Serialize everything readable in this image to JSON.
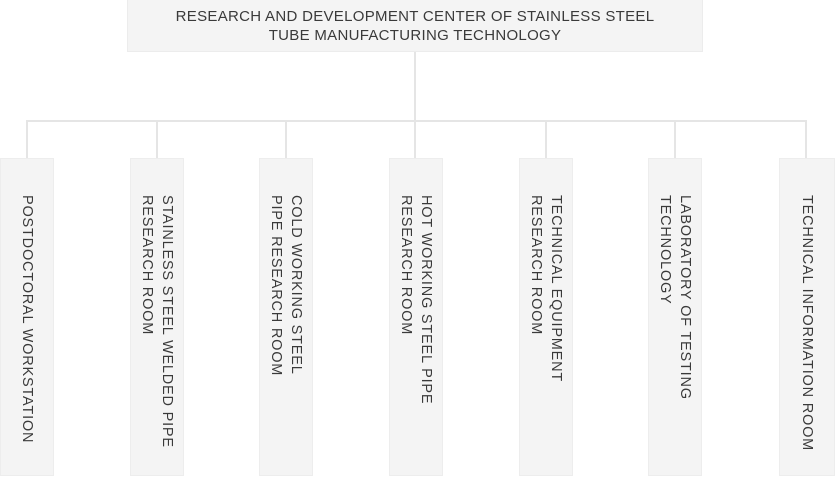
{
  "org_chart": {
    "root": {
      "title": "RESEARCH AND DEVELOPMENT CENTER OF STAINLESS STEEL TUBE MANUFACTURING TECHNOLOGY",
      "title_lines": [
        "RESEARCH AND DEVELOPMENT CENTER OF STAINLESS STEEL",
        "TUBE MANUFACTURING TECHNOLOGY"
      ]
    },
    "children": [
      {
        "label": "POSTDOCTORAL WORKSTATION",
        "lines": [
          "POSTDOCTORAL WORKSTATION"
        ]
      },
      {
        "label": "STAINLESS STEEL WELDED PIPE RESEARCH ROOM",
        "lines": [
          "STAINLESS STEEL WELDED PIPE",
          "RESEARCH ROOM"
        ]
      },
      {
        "label": "COLD WORKING STEEL PIPE RESEARCH ROOM",
        "lines": [
          "COLD WORKING STEEL",
          "PIPE RESEARCH ROOM"
        ]
      },
      {
        "label": "HOT WORKING STEEL PIPE RESEARCH ROOM",
        "lines": [
          "HOT WORKING STEEL PIPE",
          "RESEARCH ROOM"
        ]
      },
      {
        "label": "TECHNICAL EQUIPMENT RESEARCH ROOM",
        "lines": [
          "TECHNICAL EQUIPMENT",
          "RESEARCH ROOM"
        ]
      },
      {
        "label": "LABORATORY OF TESTING TECHNOLOGY",
        "lines": [
          "LABORATORY OF TESTING",
          "TECHNOLOGY"
        ]
      },
      {
        "label": "TECHNICAL INFORMATION ROOM",
        "lines": [
          "TECHNICAL INFORMATION ROOM"
        ]
      }
    ],
    "colors": {
      "background": "#ffffff",
      "box_fill": "#f4f4f4",
      "box_border": "#ededed",
      "connector": "#e5e5e5",
      "text": "#3a3a3a"
    }
  }
}
